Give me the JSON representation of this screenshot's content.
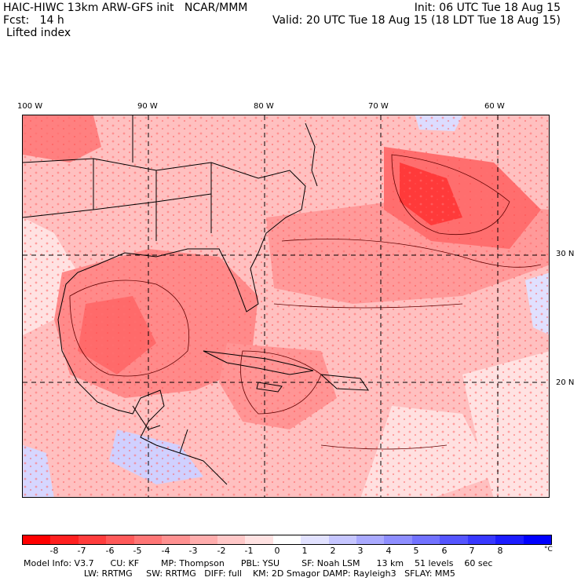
{
  "header": {
    "title": "HAIC-HIWC 13km ARW-GFS init   NCAR/MMM",
    "forecast": "Fcst:   14 h",
    "init": "Init: 06 UTC Tue 18 Aug 15",
    "valid": "Valid: 20 UTC Tue 18 Aug 15 (18 LDT Tue 18 Aug 15)",
    "field": "Lifted index"
  },
  "map": {
    "lon_labels": [
      "100 W",
      "90 W",
      "80 W",
      "70 W",
      "60 W"
    ],
    "lat_labels": [
      "30 N",
      "20 N"
    ]
  },
  "colorbar": {
    "colors": [
      "#ff0000",
      "#ff2020",
      "#ff3d3d",
      "#ff5a5a",
      "#ff7676",
      "#ff9191",
      "#ffadad",
      "#ffc8c8",
      "#ffe2e2",
      "#ffffff",
      "#e2e2ff",
      "#c6c6ff",
      "#aaaaff",
      "#8e8eff",
      "#7272ff",
      "#5555ff",
      "#3838ff",
      "#1c1cff",
      "#0000ff"
    ],
    "ticks": [
      "-8",
      "-7",
      "-6",
      "-5",
      "-4",
      "-3",
      "-2",
      "-1",
      "0",
      "1",
      "2",
      "3",
      "4",
      "5",
      "6",
      "7",
      "8"
    ],
    "unit": "°C"
  },
  "model_info": {
    "line1": "Model Info: V3.7      CU: KF        MP: Thompson      PBL: YSU        SF: Noah LSM      13 km    51 levels    60 sec",
    "line2": "                      LW: RRTMG     SW: RRTMG   DIFF: full    KM: 2D Smagor DAMP: Rayleigh3   SFLAY: MM5"
  }
}
